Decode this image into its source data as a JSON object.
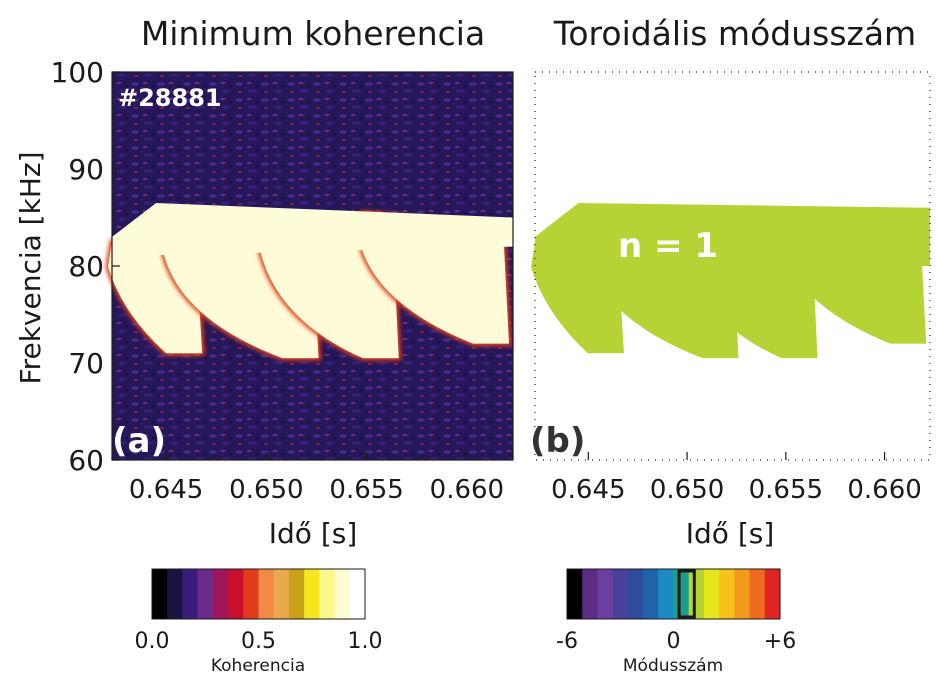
{
  "chart_data": [
    {
      "type": "heatmap",
      "panel_label": "(a)",
      "title": "Minimum koherencia",
      "shot_label": "#28881",
      "xlabel": "Idő [s]",
      "ylabel": "Frekvencia [kHz]",
      "xlim": [
        0.6423,
        0.6623
      ],
      "ylim": [
        60,
        100
      ],
      "xticks": [
        0.645,
        0.65,
        0.655,
        0.66
      ],
      "xtick_labels": [
        "0.645",
        "0.650",
        "0.655",
        "0.660"
      ],
      "yticks": [
        60,
        70,
        80,
        90,
        100
      ],
      "ytick_labels": [
        "60",
        "70",
        "80",
        "90",
        "100"
      ],
      "background_value": 0.1,
      "bands": [
        {
          "t_start": 0.6423,
          "t_end": 0.6465,
          "f_top_start": 82.5,
          "f_bottom_end": 71.0,
          "coherence": 1.0
        },
        {
          "t_start": 0.645,
          "t_end": 0.6523,
          "f_top_start": 84.5,
          "f_bottom_end": 70.5,
          "coherence": 1.0
        },
        {
          "t_start": 0.6498,
          "t_end": 0.6563,
          "f_top_start": 85.0,
          "f_bottom_end": 70.5,
          "coherence": 1.0
        },
        {
          "t_start": 0.6548,
          "t_end": 0.6618,
          "f_top_start": 85.5,
          "f_bottom_end": 72.0,
          "coherence": 1.0
        }
      ],
      "colorbar": {
        "label": "Koherencia",
        "range": [
          0,
          1
        ],
        "tick_labels": [
          "0.0",
          "0.5",
          "1.0"
        ],
        "colors": [
          "#000000",
          "#1b1440",
          "#3a1d7a",
          "#6c2a8a",
          "#a0165a",
          "#c8102e",
          "#e23b1c",
          "#f08a44",
          "#e9a84c",
          "#c9a21a",
          "#f5e620",
          "#fbf78a",
          "#fdfbd0",
          "#ffffff"
        ]
      }
    },
    {
      "type": "heatmap",
      "panel_label": "(b)",
      "title": "Toroidális módusszám",
      "annotation": "n = 1",
      "xlabel": "Idő [s]",
      "xlim": [
        0.6423,
        0.6623
      ],
      "ylim": [
        60,
        100
      ],
      "xticks": [
        0.645,
        0.65,
        0.655,
        0.66
      ],
      "xtick_labels": [
        "0.645",
        "0.650",
        "0.655",
        "0.660"
      ],
      "dominant_mode": 1,
      "dominant_color": "#b5d334",
      "colorbar": {
        "label": "Módusszám",
        "range": [
          -6,
          6
        ],
        "tick_values": [
          -6,
          0,
          6
        ],
        "tick_labels": [
          "-6",
          "0",
          "+6"
        ],
        "highlighted_mode": 1,
        "colors": [
          "#000000",
          "#5a2d82",
          "#6b3fa0",
          "#4a3f9a",
          "#2f4b9c",
          "#1f64a8",
          "#1c8bc4",
          "#1aa08a",
          "#b5d334",
          "#e6e61a",
          "#f6c21a",
          "#f39a1c",
          "#ee6a1c",
          "#e02323"
        ]
      }
    }
  ]
}
